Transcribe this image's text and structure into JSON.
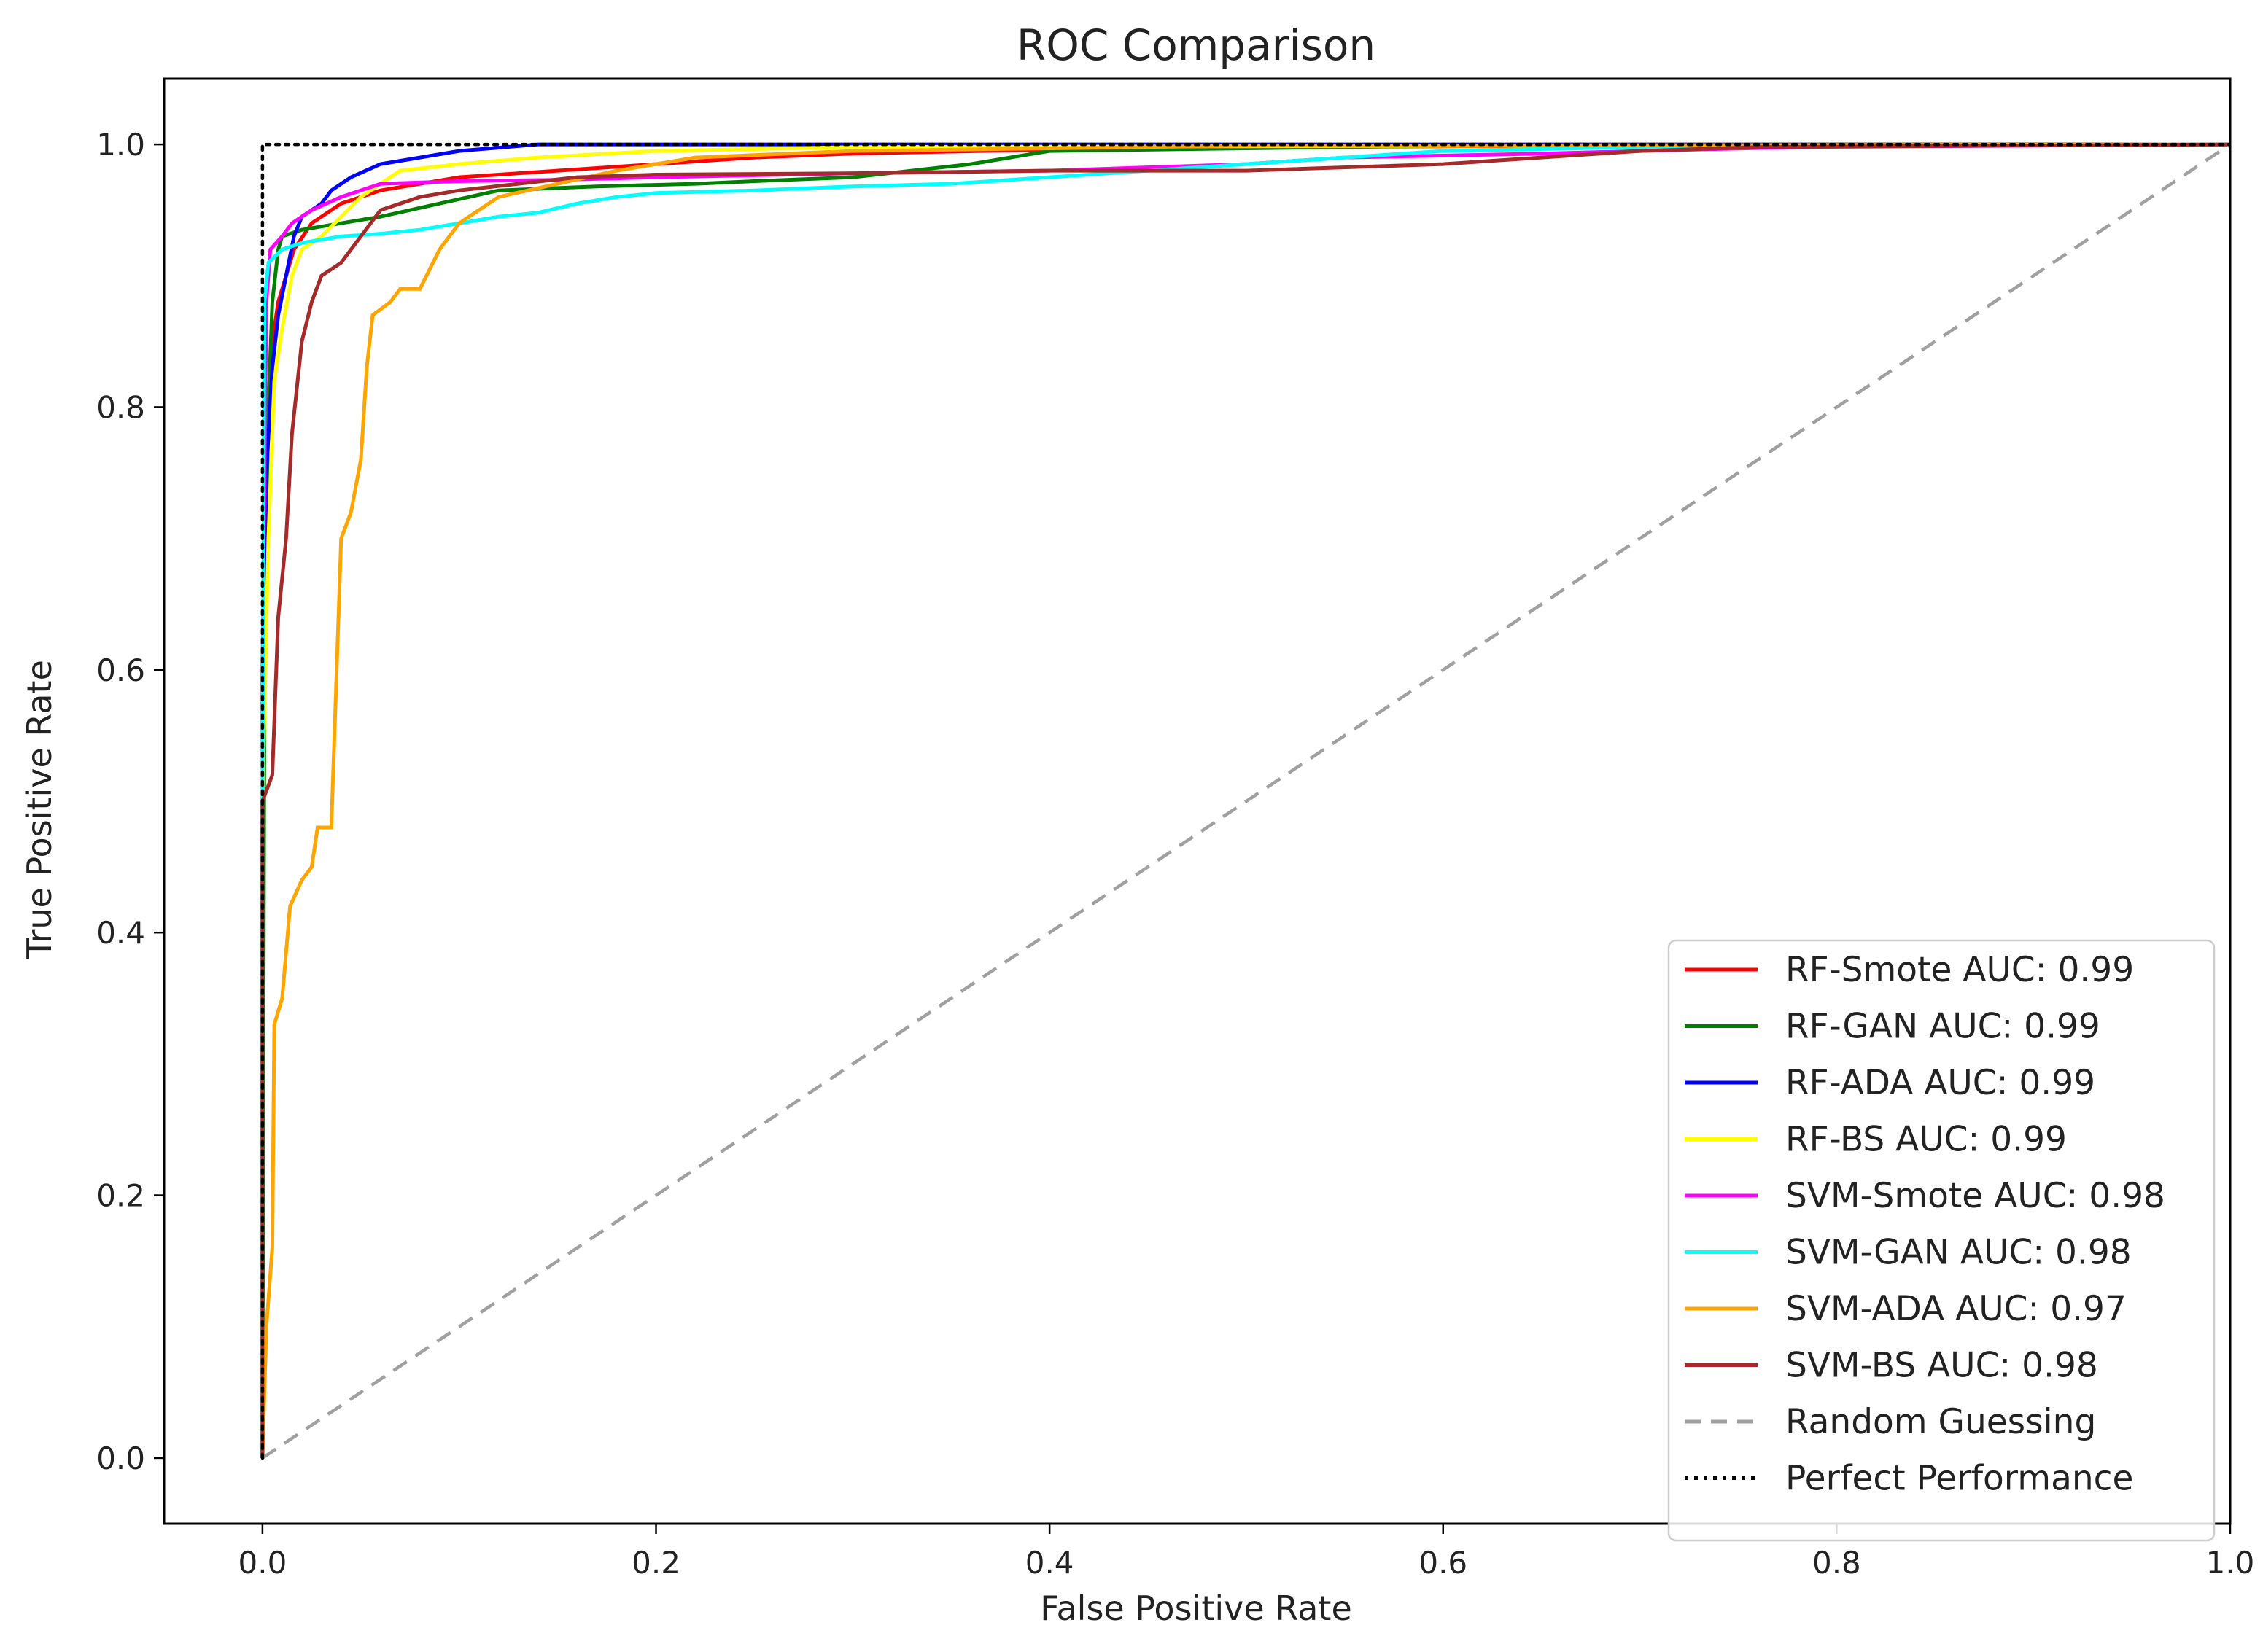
{
  "chart_data": {
    "type": "line",
    "title": "ROC Comparison",
    "xlabel": "False Positive Rate",
    "ylabel": "True Positive Rate",
    "xlim": [
      -0.05,
      1.0
    ],
    "ylim": [
      -0.05,
      1.05
    ],
    "xticks": [
      0.0,
      0.2,
      0.4,
      0.6,
      0.8,
      1.0
    ],
    "xtick_labels": [
      "0.0",
      "0.2",
      "0.4",
      "0.6",
      "0.8",
      "1.0"
    ],
    "yticks": [
      0.0,
      0.2,
      0.4,
      0.6,
      0.8,
      1.0
    ],
    "ytick_labels": [
      "0.0",
      "0.2",
      "0.4",
      "0.6",
      "0.8",
      "1.0"
    ],
    "grid": false,
    "legend_position": "lower-right",
    "series": [
      {
        "name": "RF-Smote",
        "label": "RF-Smote AUC: 0.99",
        "color": "#ff0000",
        "dash": "solid",
        "points": [
          [
            0,
            0
          ],
          [
            0,
            0.5
          ],
          [
            0.002,
            0.75
          ],
          [
            0.005,
            0.85
          ],
          [
            0.008,
            0.88
          ],
          [
            0.012,
            0.9
          ],
          [
            0.016,
            0.92
          ],
          [
            0.025,
            0.94
          ],
          [
            0.04,
            0.955
          ],
          [
            0.06,
            0.965
          ],
          [
            0.1,
            0.975
          ],
          [
            0.15,
            0.98
          ],
          [
            0.2,
            0.985
          ],
          [
            0.25,
            0.99
          ],
          [
            0.3,
            0.993
          ],
          [
            0.4,
            0.996
          ],
          [
            0.5,
            0.998
          ],
          [
            0.7,
            0.999
          ],
          [
            1,
            1
          ]
        ]
      },
      {
        "name": "RF-GAN",
        "label": "RF-GAN AUC: 0.99",
        "color": "#008000",
        "dash": "solid",
        "points": [
          [
            0,
            0
          ],
          [
            0.001,
            0.6
          ],
          [
            0.003,
            0.8
          ],
          [
            0.005,
            0.88
          ],
          [
            0.008,
            0.92
          ],
          [
            0.01,
            0.93
          ],
          [
            0.02,
            0.935
          ],
          [
            0.04,
            0.94
          ],
          [
            0.06,
            0.945
          ],
          [
            0.09,
            0.955
          ],
          [
            0.12,
            0.965
          ],
          [
            0.17,
            0.968
          ],
          [
            0.22,
            0.97
          ],
          [
            0.25,
            0.972
          ],
          [
            0.3,
            0.975
          ],
          [
            0.33,
            0.98
          ],
          [
            0.36,
            0.985
          ],
          [
            0.38,
            0.99
          ],
          [
            0.4,
            0.995
          ],
          [
            0.5,
            0.997
          ],
          [
            0.6,
            0.999
          ],
          [
            1,
            1
          ]
        ]
      },
      {
        "name": "RF-ADA",
        "label": "RF-ADA AUC: 0.99",
        "color": "#0000ff",
        "dash": "solid",
        "points": [
          [
            0,
            0
          ],
          [
            0,
            0.5
          ],
          [
            0.002,
            0.75
          ],
          [
            0.005,
            0.83
          ],
          [
            0.008,
            0.87
          ],
          [
            0.012,
            0.9
          ],
          [
            0.016,
            0.93
          ],
          [
            0.02,
            0.945
          ],
          [
            0.03,
            0.955
          ],
          [
            0.035,
            0.965
          ],
          [
            0.045,
            0.975
          ],
          [
            0.06,
            0.985
          ],
          [
            0.08,
            0.99
          ],
          [
            0.1,
            0.995
          ],
          [
            0.14,
            1
          ],
          [
            0.22,
            1
          ],
          [
            1,
            1
          ]
        ]
      },
      {
        "name": "RF-BS",
        "label": "RF-BS AUC: 0.99",
        "color": "#ffff00",
        "dash": "solid",
        "points": [
          [
            0,
            0
          ],
          [
            0,
            0.5
          ],
          [
            0.003,
            0.7
          ],
          [
            0.006,
            0.82
          ],
          [
            0.01,
            0.86
          ],
          [
            0.015,
            0.9
          ],
          [
            0.02,
            0.92
          ],
          [
            0.03,
            0.93
          ],
          [
            0.04,
            0.945
          ],
          [
            0.05,
            0.96
          ],
          [
            0.06,
            0.97
          ],
          [
            0.07,
            0.98
          ],
          [
            0.1,
            0.985
          ],
          [
            0.14,
            0.99
          ],
          [
            0.2,
            0.995
          ],
          [
            0.3,
            0.998
          ],
          [
            1,
            1
          ]
        ]
      },
      {
        "name": "SVM-Smote",
        "label": "SVM-Smote AUC: 0.98",
        "color": "#ff00ff",
        "dash": "solid",
        "points": [
          [
            0,
            0
          ],
          [
            0,
            0.6
          ],
          [
            0.002,
            0.88
          ],
          [
            0.004,
            0.92
          ],
          [
            0.01,
            0.93
          ],
          [
            0.015,
            0.94
          ],
          [
            0.025,
            0.95
          ],
          [
            0.04,
            0.96
          ],
          [
            0.06,
            0.97
          ],
          [
            0.1,
            0.972
          ],
          [
            0.15,
            0.973
          ],
          [
            0.2,
            0.975
          ],
          [
            0.3,
            0.978
          ],
          [
            0.4,
            0.98
          ],
          [
            0.5,
            0.985
          ],
          [
            0.55,
            0.99
          ],
          [
            0.65,
            0.993
          ],
          [
            0.7,
            0.995
          ],
          [
            0.78,
            0.998
          ],
          [
            1,
            1
          ]
        ]
      },
      {
        "name": "SVM-GAN",
        "label": "SVM-GAN AUC: 0.98",
        "color": "#00ffff",
        "dash": "solid",
        "points": [
          [
            0,
            0
          ],
          [
            0,
            0.5
          ],
          [
            0.001,
            0.88
          ],
          [
            0.003,
            0.91
          ],
          [
            0.01,
            0.92
          ],
          [
            0.02,
            0.925
          ],
          [
            0.04,
            0.93
          ],
          [
            0.06,
            0.932
          ],
          [
            0.08,
            0.935
          ],
          [
            0.1,
            0.94
          ],
          [
            0.12,
            0.945
          ],
          [
            0.14,
            0.948
          ],
          [
            0.16,
            0.955
          ],
          [
            0.18,
            0.96
          ],
          [
            0.2,
            0.963
          ],
          [
            0.25,
            0.965
          ],
          [
            0.3,
            0.968
          ],
          [
            0.35,
            0.97
          ],
          [
            0.4,
            0.975
          ],
          [
            0.45,
            0.98
          ],
          [
            0.5,
            0.985
          ],
          [
            0.55,
            0.99
          ],
          [
            0.6,
            0.995
          ],
          [
            0.7,
            0.998
          ],
          [
            1,
            1
          ]
        ]
      },
      {
        "name": "SVM-ADA",
        "label": "SVM-ADA AUC: 0.97",
        "color": "#ffa500",
        "dash": "solid",
        "points": [
          [
            0,
            0
          ],
          [
            0.002,
            0.1
          ],
          [
            0.005,
            0.16
          ],
          [
            0.006,
            0.33
          ],
          [
            0.01,
            0.35
          ],
          [
            0.014,
            0.42
          ],
          [
            0.02,
            0.44
          ],
          [
            0.025,
            0.45
          ],
          [
            0.028,
            0.48
          ],
          [
            0.035,
            0.48
          ],
          [
            0.04,
            0.7
          ],
          [
            0.045,
            0.72
          ],
          [
            0.05,
            0.76
          ],
          [
            0.053,
            0.83
          ],
          [
            0.056,
            0.87
          ],
          [
            0.065,
            0.88
          ],
          [
            0.07,
            0.89
          ],
          [
            0.08,
            0.89
          ],
          [
            0.09,
            0.92
          ],
          [
            0.1,
            0.94
          ],
          [
            0.12,
            0.96
          ],
          [
            0.15,
            0.97
          ],
          [
            0.18,
            0.98
          ],
          [
            0.22,
            0.99
          ],
          [
            0.3,
            0.995
          ],
          [
            0.5,
            0.999
          ],
          [
            1,
            1
          ]
        ]
      },
      {
        "name": "SVM-BS",
        "label": "SVM-BS AUC: 0.98",
        "color": "#a52a2a",
        "dash": "solid",
        "points": [
          [
            0,
            0
          ],
          [
            0,
            0.5
          ],
          [
            0.005,
            0.52
          ],
          [
            0.008,
            0.64
          ],
          [
            0.012,
            0.7
          ],
          [
            0.015,
            0.78
          ],
          [
            0.02,
            0.85
          ],
          [
            0.025,
            0.88
          ],
          [
            0.03,
            0.9
          ],
          [
            0.04,
            0.91
          ],
          [
            0.05,
            0.93
          ],
          [
            0.06,
            0.95
          ],
          [
            0.08,
            0.96
          ],
          [
            0.1,
            0.965
          ],
          [
            0.13,
            0.97
          ],
          [
            0.16,
            0.975
          ],
          [
            0.2,
            0.977
          ],
          [
            0.3,
            0.978
          ],
          [
            0.4,
            0.98
          ],
          [
            0.5,
            0.98
          ],
          [
            0.6,
            0.985
          ],
          [
            0.65,
            0.99
          ],
          [
            0.7,
            0.995
          ],
          [
            0.76,
            0.998
          ],
          [
            1,
            1
          ]
        ]
      },
      {
        "name": "Random Guessing",
        "label": "Random Guessing",
        "color": "#a0a0a0",
        "dash": "dashed",
        "points": [
          [
            0,
            0
          ],
          [
            1,
            1
          ]
        ]
      },
      {
        "name": "Perfect Performance",
        "label": "Perfect Performance",
        "color": "#000000",
        "dash": "dotted",
        "points": [
          [
            0,
            0
          ],
          [
            0,
            1
          ],
          [
            1,
            1
          ]
        ]
      }
    ]
  }
}
